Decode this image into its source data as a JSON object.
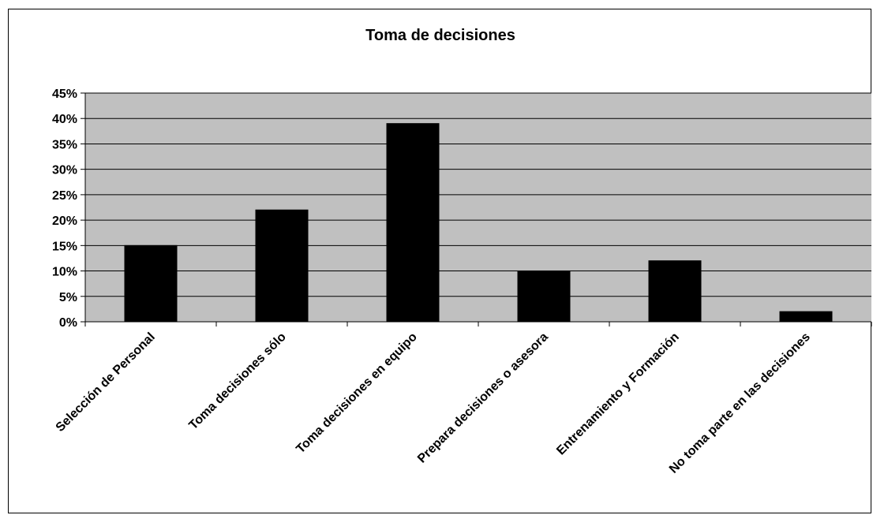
{
  "chart_data": {
    "type": "bar",
    "title": "Toma de decisiones",
    "categories": [
      "Selección de Personal",
      "Toma decisiones sólo",
      "Toma decisiones en equipo",
      "Prepara decisiones o asesora",
      "Entrenamiento y Formación",
      "No toma parte en las decisiones"
    ],
    "values": [
      15,
      22,
      39,
      10,
      12,
      2
    ],
    "value_unit": "%",
    "ylim": [
      0,
      45
    ],
    "yticks": [
      "0%",
      "5%",
      "10%",
      "15%",
      "20%",
      "25%",
      "30%",
      "35%",
      "40%",
      "45%"
    ],
    "grid": true,
    "legend": "none",
    "colors": {
      "bar": "#000000",
      "plot_area": "#c0c0c0",
      "gridline": "#000000"
    }
  }
}
